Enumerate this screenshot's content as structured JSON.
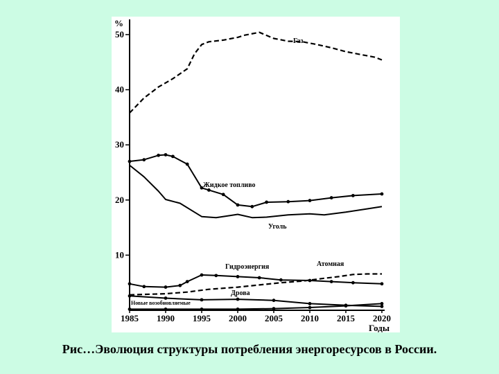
{
  "caption": "Рис…Эволюция структуры потребления энергоресурсов в России.",
  "chart_data": {
    "type": "line",
    "title": "",
    "ylabel": "%",
    "xlabel": "Годы",
    "ylim": [
      0,
      52
    ],
    "xlim": [
      1985,
      2020
    ],
    "grid": false,
    "x_ticks": [
      1985,
      1990,
      1995,
      2000,
      2005,
      2010,
      2015,
      2020
    ],
    "y_ticks": [
      10,
      20,
      30,
      40,
      50
    ],
    "series": [
      {
        "name": "Газ",
        "style": "dashed",
        "x": [
          1985,
          1987,
          1989,
          1991,
          1993,
          1994,
          1995,
          1996,
          1998,
          2000,
          2001,
          2003,
          2005,
          2007,
          2009,
          2011,
          2013,
          2015,
          2017,
          2019,
          2020
        ],
        "y": [
          35.8,
          38.5,
          40.5,
          42.0,
          43.8,
          46.5,
          48.2,
          48.7,
          49.0,
          49.5,
          49.9,
          50.4,
          49.3,
          48.8,
          48.7,
          48.2,
          47.6,
          46.9,
          46.4,
          45.9,
          45.4
        ]
      },
      {
        "name": "Жидкое топливо",
        "style": "solid-marker",
        "x": [
          1985,
          1987,
          1989,
          1990,
          1991,
          1993,
          1995,
          1996,
          1998,
          2000,
          2002,
          2004,
          2007,
          2010,
          2013,
          2016,
          2020
        ],
        "y": [
          27.0,
          27.3,
          28.1,
          28.2,
          27.9,
          26.5,
          22.2,
          21.8,
          21.0,
          19.1,
          18.8,
          19.6,
          19.7,
          19.9,
          20.4,
          20.8,
          21.1
        ]
      },
      {
        "name": "Уголь",
        "style": "solid",
        "x": [
          1985,
          1987,
          1989,
          1990,
          1992,
          1994,
          1995,
          1997,
          1999,
          2000,
          2002,
          2004,
          2007,
          2010,
          2012,
          2015,
          2018,
          2020
        ],
        "y": [
          26.3,
          24.2,
          21.6,
          20.1,
          19.4,
          17.8,
          17.0,
          16.8,
          17.2,
          17.4,
          16.8,
          16.9,
          17.3,
          17.5,
          17.3,
          17.8,
          18.4,
          18.8
        ]
      },
      {
        "name": "Гидроэнергия",
        "style": "solid-marker",
        "x": [
          1985,
          1987,
          1990,
          1992,
          1993,
          1995,
          1997,
          2000,
          2003,
          2006,
          2010,
          2013,
          2016,
          2020
        ],
        "y": [
          4.8,
          4.3,
          4.2,
          4.5,
          5.2,
          6.4,
          6.3,
          6.1,
          5.9,
          5.5,
          5.4,
          5.2,
          5.0,
          4.8
        ]
      },
      {
        "name": "Атомная",
        "style": "dashed",
        "x": [
          1985,
          1990,
          1993,
          1996,
          2000,
          2003,
          2006,
          2009,
          2012,
          2014,
          2016,
          2018,
          2020
        ],
        "y": [
          2.8,
          3.0,
          3.3,
          3.8,
          4.2,
          4.6,
          5.0,
          5.3,
          5.8,
          6.1,
          6.5,
          6.6,
          6.6
        ]
      },
      {
        "name": "Дрова",
        "style": "solid-marker",
        "x": [
          1985,
          1990,
          1995,
          2000,
          2005,
          2010,
          2015,
          2020
        ],
        "y": [
          2.6,
          2.2,
          1.9,
          2.0,
          1.8,
          1.2,
          0.9,
          0.7
        ]
      },
      {
        "name": "Новые возобновляемые",
        "style": "solid-marker",
        "x": [
          1985,
          1990,
          1995,
          2000,
          2005,
          2010,
          2015,
          2020
        ],
        "y": [
          0.2,
          0.2,
          0.2,
          0.2,
          0.3,
          0.5,
          0.8,
          1.2
        ]
      }
    ]
  }
}
